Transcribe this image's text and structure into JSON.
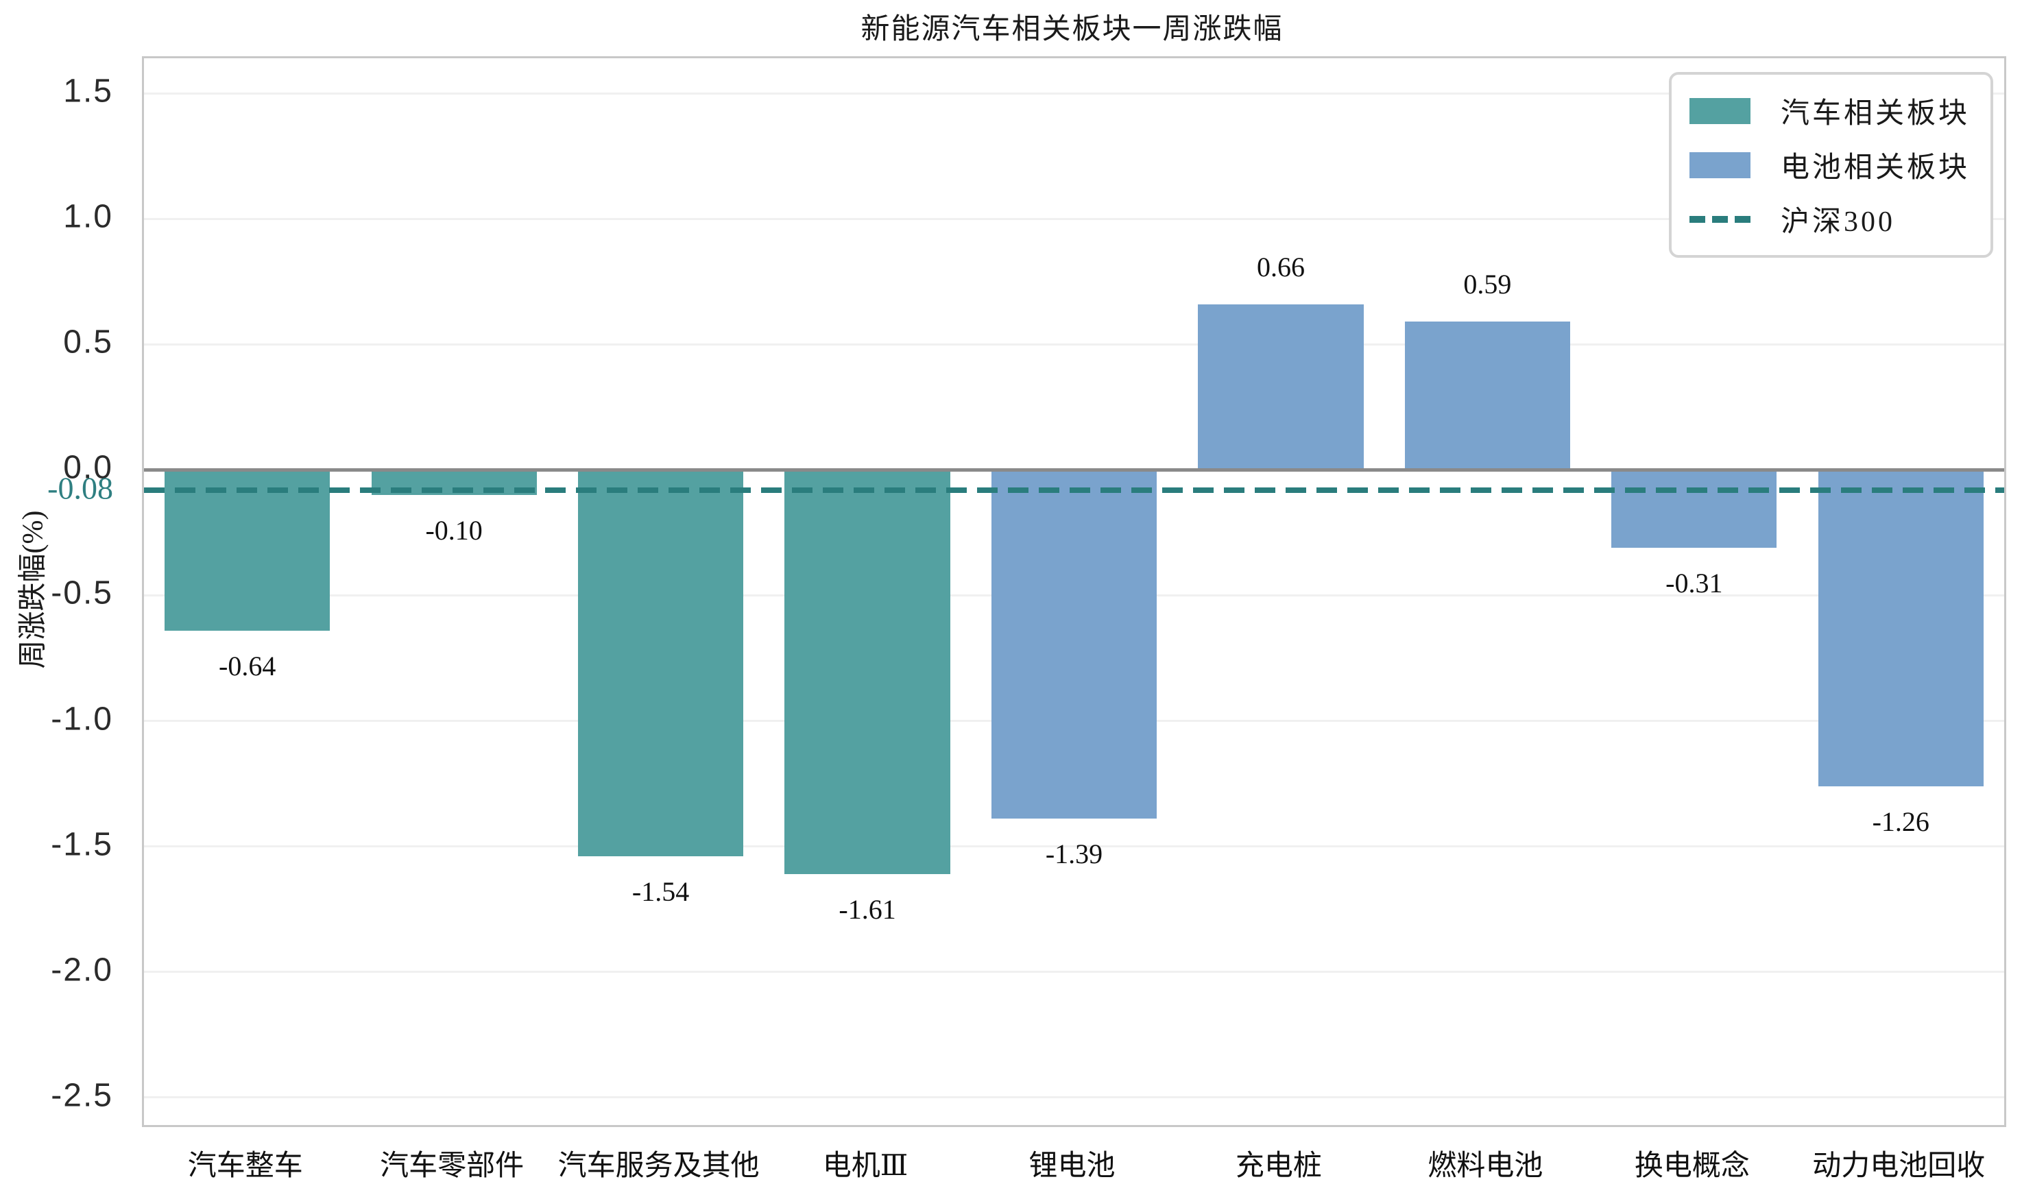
{
  "title": "新能源汽车相关板块一周涨跌幅",
  "colors": {
    "auto_series": "#54a1a1",
    "battery_series": "#7aa3cd",
    "benchmark": "#2a7d7d",
    "benchmark_text": "#2f7f81",
    "zero_line": "#8a8a8a",
    "grid_line": "#f0f0f0",
    "plot_border": "#c8c8c8",
    "legend_border": "#d4d4d4"
  },
  "legend": {
    "items": [
      {
        "label": "汽车相关板块",
        "swatch": "teal-rect"
      },
      {
        "label": "电池相关板块",
        "swatch": "blue-rect"
      },
      {
        "label": "沪深300",
        "swatch": "dashed-line"
      }
    ]
  },
  "chart_data": {
    "type": "bar",
    "title": "新能源汽车相关板块一周涨跌幅",
    "xlabel": "",
    "ylabel": "周涨跌幅(%)",
    "categories": [
      "汽车整车",
      "汽车零部件",
      "汽车服务及其他",
      "电机Ⅲ",
      "锂电池",
      "充电桩",
      "燃料电池",
      "换电概念",
      "动力电池回收"
    ],
    "series": [
      {
        "name": "汽车相关板块",
        "color": "#54a1a1",
        "values": [
          -0.64,
          -0.1,
          -1.54,
          -1.61,
          null,
          null,
          null,
          null,
          null
        ]
      },
      {
        "name": "电池相关板块",
        "color": "#7aa3cd",
        "values": [
          null,
          null,
          null,
          null,
          -1.39,
          0.66,
          0.59,
          -0.31,
          -1.26
        ]
      }
    ],
    "value_labels": [
      "-0.64",
      "-0.10",
      "-1.54",
      "-1.61",
      "-1.39",
      "0.66",
      "0.59",
      "-0.31",
      "-1.26"
    ],
    "benchmark_line": {
      "name": "沪深300",
      "value": -0.08,
      "label": "-0.08",
      "style": "dashed",
      "color": "#2a7d7d"
    },
    "yticks": [
      {
        "label": "1.5",
        "value": 1.5
      },
      {
        "label": "1.0",
        "value": 1.0
      },
      {
        "label": "0.5",
        "value": 0.5
      },
      {
        "label": "0.0",
        "value": 0.0
      },
      {
        "label": "-0.5",
        "value": -0.5
      },
      {
        "label": "-1.0",
        "value": -1.0
      },
      {
        "label": "-1.5",
        "value": -1.5
      },
      {
        "label": "-2.0",
        "value": -2.0
      },
      {
        "label": "-2.5",
        "value": -2.5
      }
    ],
    "ylim": [
      -2.61,
      1.64
    ],
    "grid": true,
    "legend_position": "upper right",
    "bar_width_fraction": 0.8
  }
}
